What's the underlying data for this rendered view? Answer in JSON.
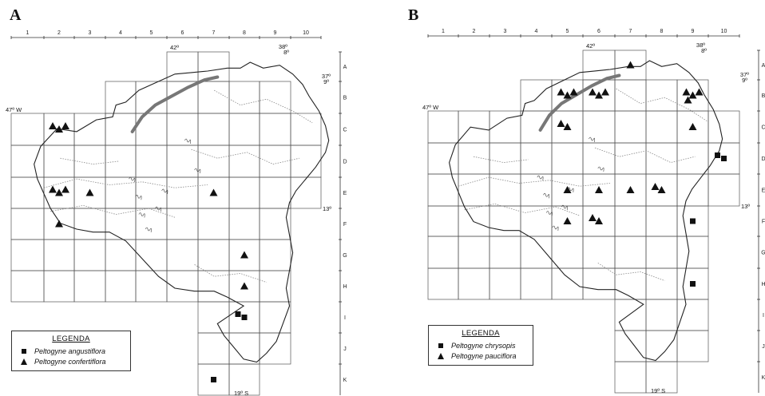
{
  "panels": [
    {
      "letter": "A",
      "column_numbers": [
        "1",
        "2",
        "3",
        "4",
        "5",
        "6",
        "7",
        "8",
        "9",
        "10"
      ],
      "row_letters": [
        "A",
        "B",
        "C",
        "D",
        "E",
        "F",
        "G",
        "H",
        "I",
        "J",
        "K"
      ],
      "coord_labels": {
        "top_lon_left": "42º",
        "top_lon_right": "38º",
        "lat_8": "8º",
        "lon_37": "37º",
        "lat_9": "9º",
        "west": "47º W",
        "lat_13": "13º",
        "south": "19º S"
      },
      "legend": {
        "title": "LEGENDA",
        "entries": [
          {
            "symbol": "square",
            "label": "Peltogyne angustiflora"
          },
          {
            "symbol": "triangle",
            "label": "Peltogyne confertiflora"
          }
        ]
      },
      "records": [
        {
          "species": "Peltogyne confertiflora",
          "cell": "C2"
        },
        {
          "species": "Peltogyne confertiflora",
          "cell": "C2"
        },
        {
          "species": "Peltogyne confertiflora",
          "cell": "C2"
        },
        {
          "species": "Peltogyne confertiflora",
          "cell": "E2"
        },
        {
          "species": "Peltogyne confertiflora",
          "cell": "E2"
        },
        {
          "species": "Peltogyne confertiflora",
          "cell": "E3"
        },
        {
          "species": "Peltogyne confertiflora",
          "cell": "E2"
        },
        {
          "species": "Peltogyne confertiflora",
          "cell": "F2"
        },
        {
          "species": "Peltogyne confertiflora",
          "cell": "E7"
        },
        {
          "species": "Peltogyne confertiflora",
          "cell": "G8"
        },
        {
          "species": "Peltogyne confertiflora",
          "cell": "H8"
        },
        {
          "species": "Peltogyne angustiflora",
          "cell": "I8"
        },
        {
          "species": "Peltogyne angustiflora",
          "cell": "I8"
        },
        {
          "species": "Peltogyne angustiflora",
          "cell": "K7"
        }
      ]
    },
    {
      "letter": "B",
      "column_numbers": [
        "1",
        "2",
        "3",
        "4",
        "5",
        "6",
        "7",
        "8",
        "9",
        "10"
      ],
      "row_letters": [
        "A",
        "B",
        "C",
        "D",
        "E",
        "F",
        "G",
        "H",
        "I",
        "J",
        "K"
      ],
      "coord_labels": {
        "top_lon_left": "42º",
        "top_lon_right": "38º",
        "lat_8": "8º",
        "lon_37": "37º",
        "lat_9": "9º",
        "west": "47º W",
        "lat_13": "13º",
        "south": "19º S"
      },
      "legend": {
        "title": "LEGENDA",
        "entries": [
          {
            "symbol": "square",
            "label": "Peltogyne chrysopis"
          },
          {
            "symbol": "triangle",
            "label": "Peltogyne pauciflora"
          }
        ]
      },
      "records": [
        {
          "species": "Peltogyne pauciflora",
          "cell": "B5"
        },
        {
          "species": "Peltogyne pauciflora",
          "cell": "B5"
        },
        {
          "species": "Peltogyne pauciflora",
          "cell": "B5"
        },
        {
          "species": "Peltogyne pauciflora",
          "cell": "C5"
        },
        {
          "species": "Peltogyne pauciflora",
          "cell": "C5"
        },
        {
          "species": "Peltogyne pauciflora",
          "cell": "B6"
        },
        {
          "species": "Peltogyne pauciflora",
          "cell": "B6"
        },
        {
          "species": "Peltogyne pauciflora",
          "cell": "B6"
        },
        {
          "species": "Peltogyne pauciflora",
          "cell": "A7"
        },
        {
          "species": "Peltogyne pauciflora",
          "cell": "B9"
        },
        {
          "species": "Peltogyne pauciflora",
          "cell": "B9"
        },
        {
          "species": "Peltogyne pauciflora",
          "cell": "B9"
        },
        {
          "species": "Peltogyne pauciflora",
          "cell": "B9"
        },
        {
          "species": "Peltogyne pauciflora",
          "cell": "C9"
        },
        {
          "species": "Peltogyne pauciflora",
          "cell": "E7"
        },
        {
          "species": "Peltogyne pauciflora",
          "cell": "E8"
        },
        {
          "species": "Peltogyne pauciflora",
          "cell": "E8"
        },
        {
          "species": "Peltogyne pauciflora",
          "cell": "E5"
        },
        {
          "species": "Peltogyne pauciflora",
          "cell": "F5"
        },
        {
          "species": "Peltogyne pauciflora",
          "cell": "F6"
        },
        {
          "species": "Peltogyne pauciflora",
          "cell": "F6"
        },
        {
          "species": "Peltogyne pauciflora",
          "cell": "E6"
        },
        {
          "species": "Peltogyne chrysopis",
          "cell": "D10"
        },
        {
          "species": "Peltogyne chrysopis",
          "cell": "D10"
        },
        {
          "species": "Peltogyne chrysopis",
          "cell": "F9"
        },
        {
          "species": "Peltogyne chrysopis",
          "cell": "H9"
        }
      ]
    }
  ]
}
